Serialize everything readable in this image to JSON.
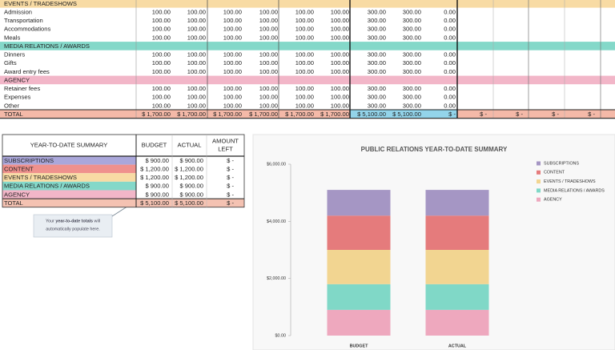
{
  "budget_table": {
    "sections": [
      {
        "title": "EVENTS / TRADESHOWS",
        "color": "#f8dba4",
        "rows": [
          {
            "label": "Admission",
            "cells": [
              "100.00",
              "100.00",
              "100.00",
              "100.00",
              "100.00",
              "100.00",
              "300.00",
              "300.00",
              "0.00"
            ]
          },
          {
            "label": "Transportation",
            "cells": [
              "100.00",
              "100.00",
              "100.00",
              "100.00",
              "100.00",
              "100.00",
              "300.00",
              "300.00",
              "0.00"
            ]
          },
          {
            "label": "Accommodations",
            "cells": [
              "100.00",
              "100.00",
              "100.00",
              "100.00",
              "100.00",
              "100.00",
              "300.00",
              "300.00",
              "0.00"
            ]
          },
          {
            "label": "Meals",
            "cells": [
              "100.00",
              "100.00",
              "100.00",
              "100.00",
              "100.00",
              "100.00",
              "300.00",
              "300.00",
              "0.00"
            ]
          }
        ]
      },
      {
        "title": "MEDIA RELATIONS / AWARDS",
        "color": "#84d8c9",
        "rows": [
          {
            "label": "Dinners",
            "cells": [
              "100.00",
              "100.00",
              "100.00",
              "100.00",
              "100.00",
              "100.00",
              "300.00",
              "300.00",
              "0.00"
            ]
          },
          {
            "label": "Gifts",
            "cells": [
              "100.00",
              "100.00",
              "100.00",
              "100.00",
              "100.00",
              "100.00",
              "300.00",
              "300.00",
              "0.00"
            ]
          },
          {
            "label": "Award entry fees",
            "cells": [
              "100.00",
              "100.00",
              "100.00",
              "100.00",
              "100.00",
              "100.00",
              "300.00",
              "300.00",
              "0.00"
            ]
          }
        ]
      },
      {
        "title": "AGENCY",
        "color": "#f2b6c8",
        "rows": [
          {
            "label": "Retainer fees",
            "cells": [
              "100.00",
              "100.00",
              "100.00",
              "100.00",
              "100.00",
              "100.00",
              "300.00",
              "300.00",
              "0.00"
            ]
          },
          {
            "label": "Expenses",
            "cells": [
              "100.00",
              "100.00",
              "100.00",
              "100.00",
              "100.00",
              "100.00",
              "300.00",
              "300.00",
              "0.00"
            ]
          },
          {
            "label": "Other",
            "cells": [
              "100.00",
              "100.00",
              "100.00",
              "100.00",
              "100.00",
              "100.00",
              "300.00",
              "300.00",
              "0.00"
            ]
          }
        ]
      }
    ],
    "total": {
      "label": "TOTAL",
      "color": "#f4b9a8",
      "highlight_color": "#93d4ea",
      "cells": [
        "$ 1,700.00",
        "$ 1,700.00",
        "$ 1,700.00",
        "$ 1,700.00",
        "$ 1,700.00",
        "$ 1,700.00",
        "$ 5,100.00",
        "$ 5,100.00",
        "$ -",
        "$ -",
        "$ -",
        "$ -",
        "$ -"
      ]
    }
  },
  "summary_table": {
    "headers": {
      "label": "YEAR-TO-DATE SUMMARY",
      "budget": "BUDGET",
      "actual": "ACTUAL",
      "amount_left": [
        "AMOUNT",
        "LEFT"
      ]
    },
    "rows": [
      {
        "label": "SUBSCRIPTIONS",
        "color": "#aaa7da",
        "cells": [
          "$ 900.00",
          "$ 900.00",
          "$ -"
        ]
      },
      {
        "label": "CONTENT",
        "color": "#ef918d",
        "cells": [
          "$ 1,200.00",
          "$ 1,200.00",
          "$ -"
        ]
      },
      {
        "label": "EVENTS / TRADESHOWS",
        "color": "#f8dba4",
        "cells": [
          "$ 1,200.00",
          "$ 1,200.00",
          "$ -"
        ]
      },
      {
        "label": "MEDIA RELATIONS / AWARDS",
        "color": "#84d8c9",
        "cells": [
          "$ 900.00",
          "$ 900.00",
          "$ -"
        ]
      },
      {
        "label": "AGENCY",
        "color": "#f2b6c8",
        "cells": [
          "$ 900.00",
          "$ 900.00",
          "$ -"
        ]
      }
    ],
    "total": {
      "label": "TOTAL",
      "color": "#f4c2b2",
      "cells": [
        "$ 5,100.00",
        "$ 5,100.00",
        "$ -"
      ]
    }
  },
  "note": {
    "line1": {
      "before": "Your ",
      "bold": "year-to-date totals",
      "after": " will"
    },
    "line2": "automatically populate here."
  },
  "chart_data": {
    "type": "stacked_bar",
    "title": "PUBLIC RELATIONS YEAR-TO-DATE SUMMARY",
    "categories": [
      "BUDGET",
      "ACTUAL"
    ],
    "series": [
      {
        "name": "SUBSCRIPTIONS",
        "color": "#a596c4",
        "values": [
          900,
          900
        ]
      },
      {
        "name": "CONTENT",
        "color": "#e57b7c",
        "values": [
          1200,
          1200
        ]
      },
      {
        "name": "EVENTS / TRADESHOWS",
        "color": "#f2d591",
        "values": [
          1200,
          1200
        ]
      },
      {
        "name": "MEDIA RELATIONS / AWARDS",
        "color": "#80d8c7",
        "values": [
          900,
          900
        ]
      },
      {
        "name": "AGENCY",
        "color": "#eea8be",
        "values": [
          900,
          900
        ]
      }
    ],
    "ylim": [
      0,
      6000
    ],
    "yticks": [
      {
        "value": 0,
        "label": "$0.00"
      },
      {
        "value": 2000,
        "label": "$2,000.00"
      },
      {
        "value": 4000,
        "label": "$4,000.00"
      },
      {
        "value": 6000,
        "label": "$6,000.00"
      }
    ],
    "legend": "right"
  }
}
